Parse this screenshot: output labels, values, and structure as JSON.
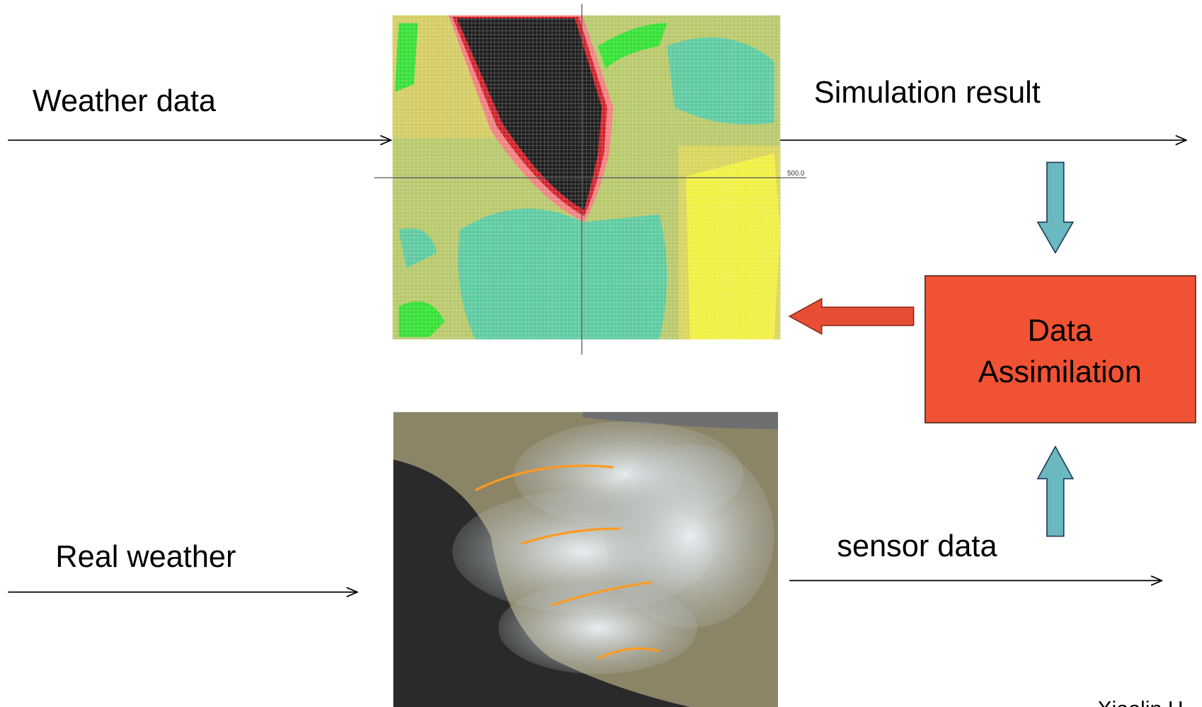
{
  "simulation": {
    "input_label": "Weather data",
    "output_label": "Simulation result",
    "axis_label": "500.0"
  },
  "reality": {
    "input_label": "Real weather",
    "output_label": "sensor data"
  },
  "process": {
    "label": [
      "Data",
      "Assimilation"
    ]
  },
  "credit": "Xiaolin H"
}
